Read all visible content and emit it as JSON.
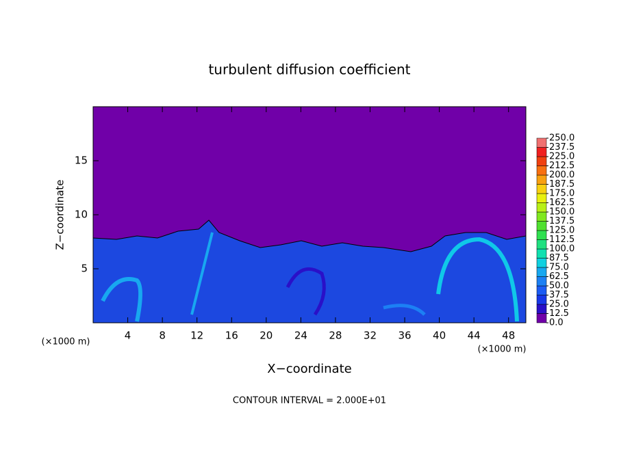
{
  "chart_data": {
    "type": "contour",
    "title": "turbulent diffusion coefficient",
    "xlabel": "X−coordinate",
    "ylabel": "Z−coordinate",
    "x_unit_left": "(×1000 m)",
    "x_unit_right": "(×1000 m)",
    "note": "CONTOUR INTERVAL = 2.000E+01",
    "xlim": [
      0,
      50
    ],
    "xticks": [
      4,
      8,
      12,
      16,
      20,
      24,
      28,
      32,
      36,
      40,
      44,
      48
    ],
    "ylim": [
      0,
      20
    ],
    "yticks": [
      5,
      10,
      15
    ],
    "colorbar": {
      "lim": [
        0,
        250
      ],
      "ticks": [
        {
          "value": 0,
          "label": "0.0"
        },
        {
          "value": 12.5,
          "label": "12.5"
        },
        {
          "value": 25,
          "label": "25.0"
        },
        {
          "value": 37.5,
          "label": "37.5"
        },
        {
          "value": 50,
          "label": "50.0"
        },
        {
          "value": 62.5,
          "label": "62.5"
        },
        {
          "value": 75,
          "label": "75.0"
        },
        {
          "value": 87.5,
          "label": "87.5"
        },
        {
          "value": 100,
          "label": "100.0"
        },
        {
          "value": 112.5,
          "label": "112.5"
        },
        {
          "value": 125,
          "label": "125.0"
        },
        {
          "value": 137.5,
          "label": "137.5"
        },
        {
          "value": 150,
          "label": "150.0"
        },
        {
          "value": 162.5,
          "label": "162.5"
        },
        {
          "value": 175,
          "label": "175.0"
        },
        {
          "value": 187.5,
          "label": "187.5"
        },
        {
          "value": 200,
          "label": "200.0"
        },
        {
          "value": 212.5,
          "label": "212.5"
        },
        {
          "value": 225,
          "label": "225.0"
        },
        {
          "value": 237.5,
          "label": "237.5"
        },
        {
          "value": 250,
          "label": "250.0"
        }
      ],
      "colors": [
        "#7000a8",
        "#2a10c8",
        "#1838e8",
        "#1c5cf4",
        "#1c80f4",
        "#18a8f0",
        "#10d0e0",
        "#10e0b0",
        "#20e080",
        "#30e050",
        "#50e030",
        "#80e820",
        "#b8f018",
        "#e8f010",
        "#f8d010",
        "#f8a010",
        "#f87010",
        "#f04010",
        "#f02020",
        "#f07070"
      ]
    }
  }
}
